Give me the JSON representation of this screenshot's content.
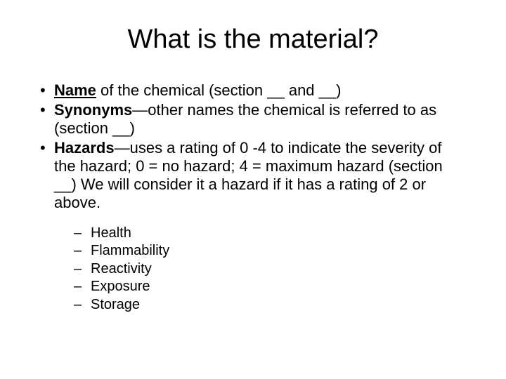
{
  "title": "What is the material?",
  "bullets": [
    {
      "bold_label": "Name",
      "underline_bold": true,
      "rest": " of the chemical (section __ and __)"
    },
    {
      "bold_label": "Synonyms",
      "rest": "—other names the chemical is referred to as (section __)"
    },
    {
      "bold_label": "Hazards",
      "rest": "—uses a rating of 0 -4 to indicate the severity of the hazard; 0 = no hazard; 4 = maximum hazard (section __)  We will consider it a hazard if it has a rating of 2 or above."
    }
  ],
  "sub_bullets": [
    "Health",
    "Flammability",
    "Reactivity",
    "Exposure",
    "Storage"
  ],
  "colors": {
    "background": "#ffffff",
    "text": "#000000"
  },
  "fonts": {
    "title_size": 38,
    "body_size": 22,
    "sub_size": 20,
    "family": "Arial"
  }
}
